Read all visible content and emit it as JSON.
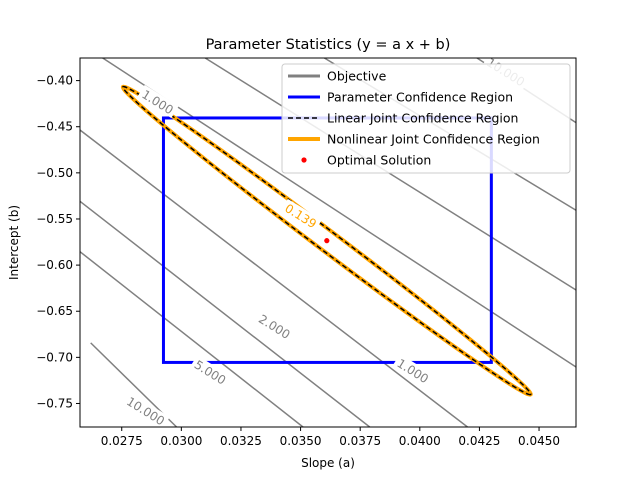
{
  "chart_data": {
    "type": "line",
    "title": "Parameter Statistics (y = a x + b)",
    "xlabel": "Slope (a)",
    "ylabel": "Intercept (b)",
    "xlim": [
      0.02575,
      0.04655
    ],
    "ylim": [
      -0.7755,
      -0.3755
    ],
    "x_ticks": [
      0.0275,
      0.03,
      0.0325,
      0.035,
      0.0375,
      0.04,
      0.0425,
      0.045
    ],
    "x_tick_labels": [
      "0.0275",
      "0.0300",
      "0.0325",
      "0.0350",
      "0.0375",
      "0.0400",
      "0.0425",
      "0.0450"
    ],
    "y_ticks": [
      -0.4,
      -0.45,
      -0.5,
      -0.55,
      -0.6,
      -0.65,
      -0.7,
      -0.75
    ],
    "y_tick_labels": [
      "−0.40",
      "−0.45",
      "−0.50",
      "−0.55",
      "−0.60",
      "−0.65",
      "−0.70",
      "−0.75"
    ],
    "grid": false,
    "legend_position": "top-right",
    "legend": [
      {
        "label": "Objective",
        "color": "#808080",
        "style": "solid"
      },
      {
        "label": "Parameter Confidence Region",
        "color": "#0000ff",
        "style": "solid"
      },
      {
        "label": "Linear Joint Confidence Region",
        "color": "#000000",
        "style": "dashed"
      },
      {
        "label": "Nonlinear Joint Confidence Region",
        "color": "#ffa500",
        "style": "thick"
      },
      {
        "label": "Optimal Solution",
        "color": "#ff0000",
        "style": "point"
      }
    ],
    "objective_contours": {
      "color": "#808080",
      "lines": [
        {
          "level": "10.000",
          "points": [
            [
              0.0262,
              -0.6843
            ],
            [
              0.0298,
              -0.7755
            ]
          ]
        },
        {
          "level": "5.000",
          "points": [
            [
              0.02575,
              -0.5855
            ],
            [
              0.0351,
              -0.7755
            ]
          ]
        },
        {
          "level": "2.000",
          "points": [
            [
              0.02575,
              -0.5308
            ],
            [
              0.0379,
              -0.7755
            ]
          ]
        },
        {
          "level": "1.000",
          "points": [
            [
              0.02575,
              -0.4535
            ],
            [
              0.042,
              -0.7755
            ]
          ]
        },
        {
          "level": "1.000",
          "points": [
            [
              0.0267,
              -0.3755
            ],
            [
              0.04655,
              -0.7105
            ]
          ]
        },
        {
          "level": "2.000",
          "points": [
            [
              0.031,
              -0.3755
            ],
            [
              0.04655,
              -0.627
            ]
          ]
        },
        {
          "level": "5.000",
          "points": [
            [
              0.036,
              -0.3755
            ],
            [
              0.04655,
              -0.5405
            ]
          ]
        },
        {
          "level": "10.000",
          "points": [
            [
              0.0424,
              -0.3755
            ],
            [
              0.04655,
              -0.4455
            ]
          ]
        }
      ],
      "labels": [
        {
          "text": "10.000",
          "x": 0.0285,
          "y": -0.7585,
          "angle": 32
        },
        {
          "text": "5.000",
          "x": 0.0312,
          "y": -0.7165,
          "angle": 32
        },
        {
          "text": "2.000",
          "x": 0.0339,
          "y": -0.667,
          "angle": 32
        },
        {
          "text": "1.000",
          "x": 0.0397,
          "y": -0.715,
          "angle": 32
        },
        {
          "text": "1.000",
          "x": 0.029,
          "y": -0.4235,
          "angle": 32
        },
        {
          "text": "10.000",
          "x": 0.0436,
          "y": -0.391,
          "angle": 32
        }
      ]
    },
    "parameter_confidence_region": {
      "color": "#0000ff",
      "a_range": [
        0.02925,
        0.043
      ],
      "b_range": [
        -0.7055,
        -0.4405
      ]
    },
    "joint_confidence_region": {
      "linear_color": "#000000",
      "nonlinear_color": "#ffa500",
      "center": [
        0.0361,
        -0.5735
      ],
      "endpoint_upper": [
        0.02755,
        -0.407
      ],
      "endpoint_lower": [
        0.04465,
        -0.7405
      ],
      "half_width": 0.011,
      "label": {
        "text": "0.139",
        "x": 0.035,
        "y": -0.547,
        "angle": 32
      }
    },
    "optimal_solution": {
      "a": 0.0361,
      "b": -0.5735,
      "color": "#ff0000"
    }
  }
}
